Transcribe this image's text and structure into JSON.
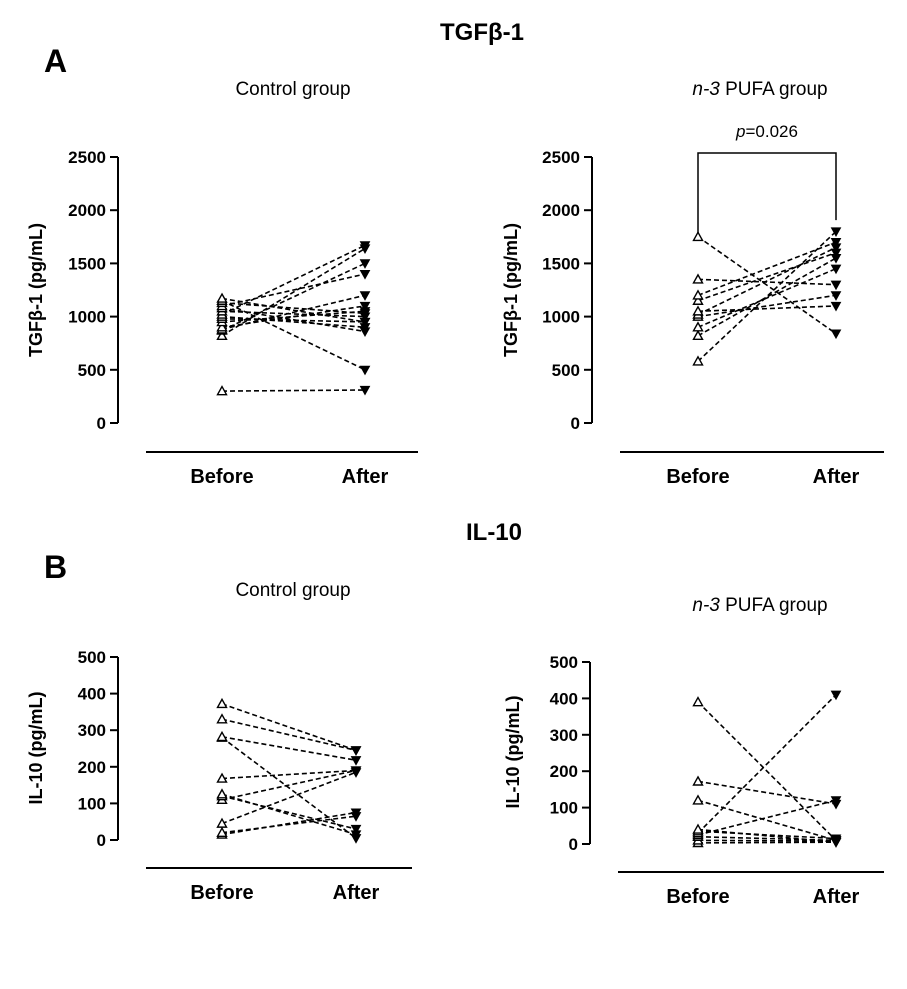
{
  "section_a": {
    "title": "TGFβ-1",
    "letter": "A"
  },
  "section_b": {
    "title": "IL-10",
    "letter": "B"
  },
  "chart_data": [
    {
      "type": "line",
      "panel": "A-left",
      "title": "Control group",
      "ylabel": "TGFβ-1 (pg/mL)",
      "xlabel": "",
      "categories": [
        "Before",
        "After"
      ],
      "ylim": [
        0,
        2500
      ],
      "yticks": [
        0,
        500,
        1000,
        1500,
        2000,
        2500
      ],
      "before_marker": "open-triangle-up",
      "after_marker": "filled-triangle-down",
      "line_style": "dashed",
      "pairs": [
        [
          300,
          310
        ],
        [
          820,
          1640
        ],
        [
          870,
          1500
        ],
        [
          880,
          1200
        ],
        [
          900,
          1100
        ],
        [
          950,
          1050
        ],
        [
          980,
          950
        ],
        [
          1000,
          900
        ],
        [
          1020,
          1670
        ],
        [
          1050,
          1000
        ],
        [
          1080,
          860
        ],
        [
          1100,
          1400
        ],
        [
          1130,
          1030
        ],
        [
          1150,
          500
        ],
        [
          1170,
          950
        ]
      ]
    },
    {
      "type": "line",
      "panel": "A-right",
      "title_italic": "n-3",
      "title": " PUFA group",
      "annotation_italic": "p",
      "annotation": "=0.026",
      "ylabel": "TGFβ-1 (pg/mL)",
      "xlabel": "",
      "categories": [
        "Before",
        "After"
      ],
      "ylim": [
        0,
        2500
      ],
      "yticks": [
        0,
        500,
        1000,
        1500,
        2000,
        2500
      ],
      "before_marker": "open-triangle-up",
      "after_marker": "filled-triangle-down",
      "line_style": "dashed",
      "pairs": [
        [
          580,
          1800
        ],
        [
          820,
          1550
        ],
        [
          900,
          1450
        ],
        [
          1000,
          1200
        ],
        [
          1020,
          1650
        ],
        [
          1050,
          1100
        ],
        [
          1150,
          1600
        ],
        [
          1200,
          1700
        ],
        [
          1350,
          1300
        ],
        [
          1750,
          840
        ]
      ]
    },
    {
      "type": "line",
      "panel": "B-left",
      "title": "Control group",
      "ylabel": "IL-10 (pg/mL)",
      "xlabel": "",
      "categories": [
        "Before",
        "After"
      ],
      "ylim": [
        0,
        500
      ],
      "yticks": [
        0,
        100,
        200,
        300,
        400,
        500
      ],
      "before_marker": "open-triangle-up",
      "after_marker": "filled-triangle-down",
      "line_style": "dashed",
      "pairs": [
        [
          15,
          75
        ],
        [
          20,
          65
        ],
        [
          45,
          185
        ],
        [
          110,
          190
        ],
        [
          120,
          30
        ],
        [
          125,
          15
        ],
        [
          168,
          190
        ],
        [
          280,
          5
        ],
        [
          282,
          218
        ],
        [
          330,
          245
        ],
        [
          372,
          245
        ]
      ]
    },
    {
      "type": "line",
      "panel": "B-right",
      "title_italic": "n-3",
      "title": " PUFA group",
      "ylabel": "IL-10 (pg/mL)",
      "xlabel": "",
      "categories": [
        "Before",
        "After"
      ],
      "ylim": [
        0,
        500
      ],
      "yticks": [
        0,
        100,
        200,
        300,
        400,
        500
      ],
      "before_marker": "open-triangle-up",
      "after_marker": "filled-triangle-down",
      "line_style": "dashed",
      "pairs": [
        [
          3,
          5
        ],
        [
          10,
          8
        ],
        [
          20,
          10
        ],
        [
          25,
          120
        ],
        [
          30,
          410
        ],
        [
          35,
          15
        ],
        [
          40,
          5
        ],
        [
          120,
          10
        ],
        [
          172,
          110
        ],
        [
          390,
          10
        ]
      ]
    }
  ]
}
